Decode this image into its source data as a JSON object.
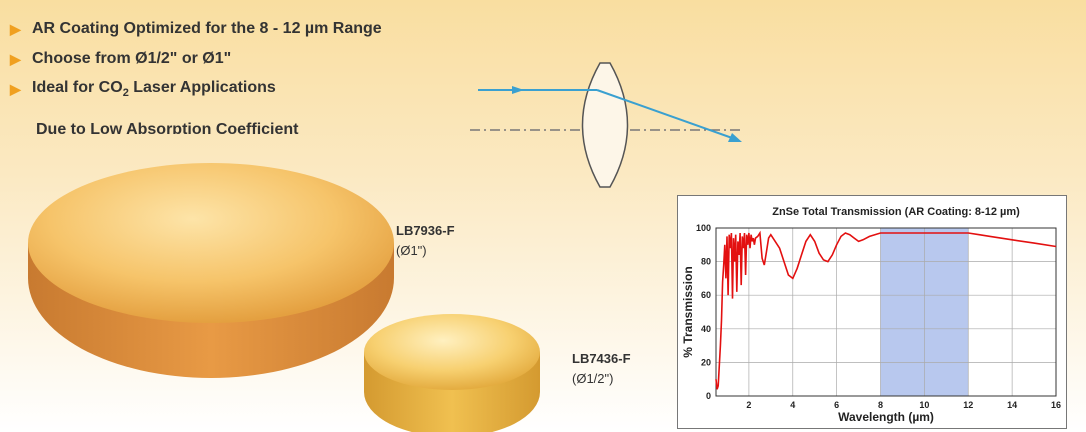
{
  "bullets": [
    {
      "text": "AR Coating Optimized for the 8 - 12 µm Range"
    },
    {
      "text": "Choose from Ø1/2\" or Ø1\""
    },
    {
      "text_main": "Ideal for CO",
      "text_sub": "2",
      "text_end": " Laser Applications"
    }
  ],
  "cutoff_text": "Due to Low Absorption Coefficient",
  "products": [
    {
      "part": "LB7936-F",
      "size": "(Ø1\")"
    },
    {
      "part": "LB7436-F",
      "size": "(Ø1/2\")"
    }
  ],
  "colors": {
    "bullet_arrow": "#f0a020",
    "ray": "#3aa0d0",
    "curve": "#e31010",
    "band": "#b8c8ee"
  },
  "chart_data": {
    "type": "line",
    "title": "ZnSe Total Transmission (AR Coating: 8-12 µm)",
    "xlabel": "Wavelength (µm)",
    "ylabel": "% Transmission",
    "xlim": [
      0.5,
      16
    ],
    "ylim": [
      0,
      100
    ],
    "xticks": [
      2,
      4,
      6,
      8,
      10,
      12,
      14,
      16
    ],
    "yticks": [
      0,
      20,
      40,
      60,
      80,
      100
    ],
    "grid": true,
    "shaded_band": [
      8,
      12
    ],
    "series": [
      {
        "x": [
          0.5,
          0.55,
          0.6,
          0.65,
          0.7,
          0.75,
          0.8,
          0.85,
          0.9,
          0.95,
          1.0,
          1.05,
          1.1,
          1.15,
          1.2,
          1.25,
          1.3,
          1.35,
          1.4,
          1.45,
          1.5,
          1.55,
          1.6,
          1.65,
          1.7,
          1.75,
          1.8,
          1.85,
          1.9,
          1.95,
          2.0,
          2.05,
          2.1,
          2.15,
          2.2,
          2.25,
          2.3,
          2.4,
          2.5,
          2.6,
          2.7,
          2.8,
          2.9,
          3.0,
          3.1,
          3.2,
          3.4,
          3.6,
          3.8,
          4.0,
          4.2,
          4.4,
          4.6,
          4.8,
          5.0,
          5.2,
          5.4,
          5.6,
          5.8,
          6.0,
          6.2,
          6.4,
          6.6,
          6.8,
          7.0,
          7.2,
          7.5,
          8.0,
          8.5,
          9.0,
          9.5,
          10.0,
          10.5,
          11.0,
          11.5,
          12.0,
          12.5,
          13.0,
          14.0,
          15.0,
          16.0
        ],
        "y": [
          10,
          4,
          6,
          18,
          30,
          45,
          68,
          78,
          90,
          70,
          95,
          60,
          96,
          88,
          97,
          58,
          94,
          80,
          96,
          62,
          92,
          84,
          97,
          66,
          95,
          88,
          97,
          72,
          96,
          90,
          97,
          88,
          96,
          92,
          94,
          90,
          94,
          95,
          97,
          82,
          78,
          86,
          94,
          96,
          94,
          92,
          88,
          80,
          72,
          70,
          76,
          84,
          92,
          96,
          92,
          85,
          81,
          80,
          84,
          90,
          95,
          97,
          96,
          94,
          92,
          93,
          95,
          97,
          97,
          97,
          97,
          97,
          97,
          97,
          97,
          97,
          96,
          95,
          93,
          91,
          89
        ]
      }
    ]
  }
}
